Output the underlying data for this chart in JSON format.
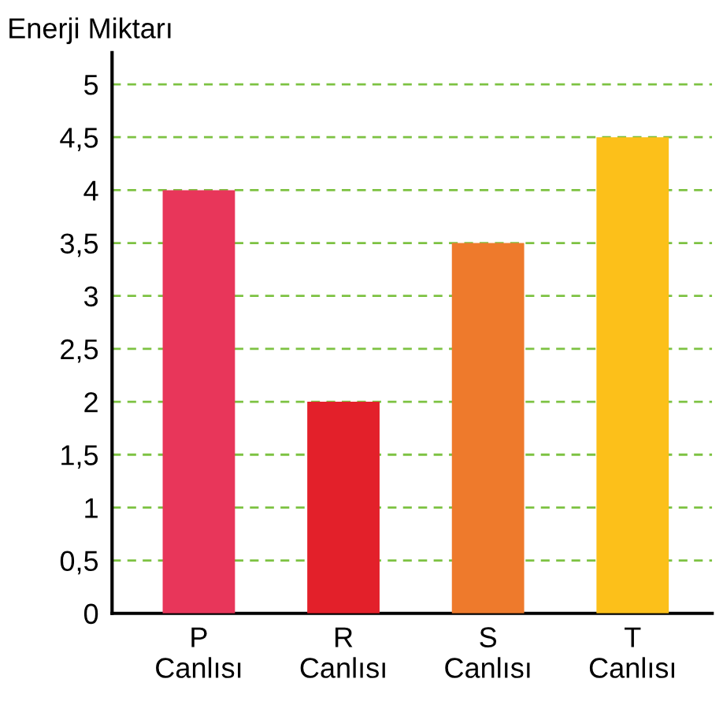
{
  "chart_data": {
    "type": "bar",
    "ylabel": "Enerji Miktarı",
    "categories": [
      "P\nCanlısı",
      "R\nCanlısı",
      "S\nCanlısı",
      "T\nCanlısı"
    ],
    "values": [
      4,
      2,
      3.5,
      4.5
    ],
    "colors": [
      "#e8365a",
      "#e3202a",
      "#ee7a2c",
      "#fcc01a"
    ],
    "ylim": [
      0,
      5.3
    ],
    "yticks": [
      0,
      {
        "value": 0.5,
        "label": "0,5"
      },
      1,
      {
        "value": 1.5,
        "label": "1,5"
      },
      2,
      {
        "value": 2.5,
        "label": "2,5"
      },
      3,
      {
        "value": 3.5,
        "label": "3,5"
      },
      4,
      {
        "value": 4.5,
        "label": "4,5"
      },
      5
    ],
    "grid": "y",
    "line_style": "dashed"
  }
}
